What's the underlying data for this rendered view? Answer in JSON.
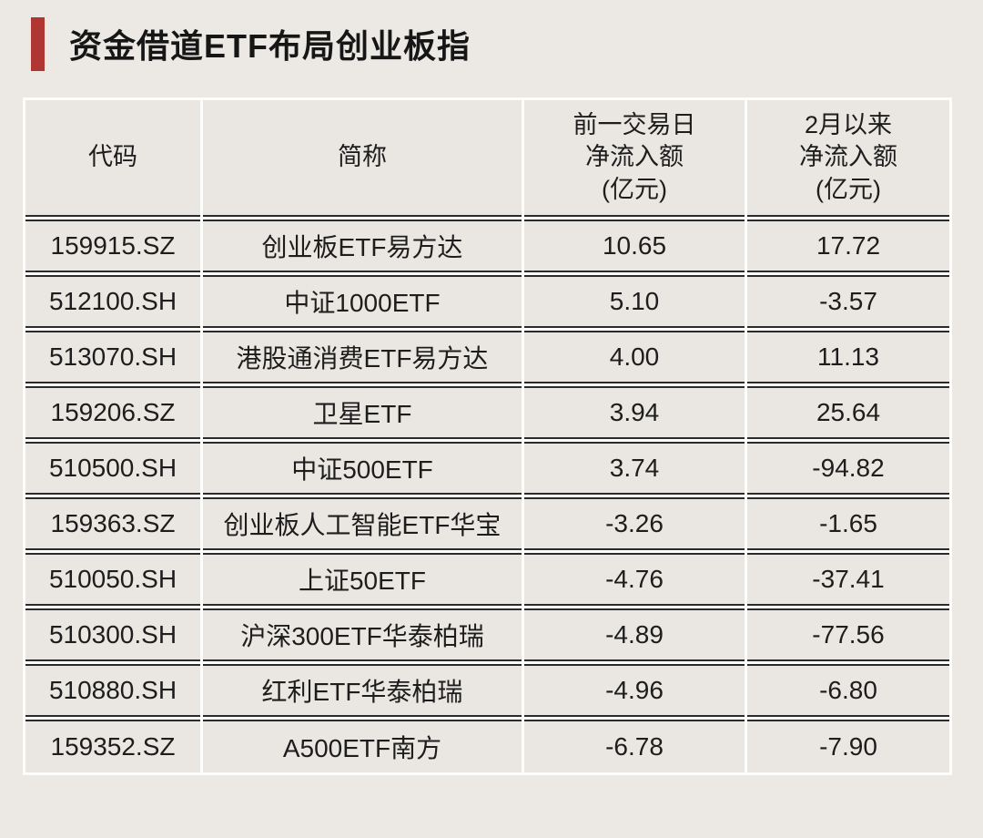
{
  "page": {
    "background": "#ECE9E5",
    "accent_red": "#AF3631"
  },
  "title": {
    "text": "资金借道ETF布局创业板指"
  },
  "table": {
    "headers": {
      "code": "代码",
      "name": "简称",
      "prev_day": "前一交易日\n净流入额\n(亿元)",
      "since_feb": "2月以来\n净流入额\n(亿元)"
    },
    "rows": [
      {
        "code": "159915.SZ",
        "name": "创业板ETF易方达",
        "prev_day": "10.65",
        "since_feb": "17.72"
      },
      {
        "code": "512100.SH",
        "name": "中证1000ETF",
        "prev_day": "5.10",
        "since_feb": "-3.57"
      },
      {
        "code": "513070.SH",
        "name": "港股通消费ETF易方达",
        "prev_day": "4.00",
        "since_feb": "11.13"
      },
      {
        "code": "159206.SZ",
        "name": "卫星ETF",
        "prev_day": "3.94",
        "since_feb": "25.64"
      },
      {
        "code": "510500.SH",
        "name": "中证500ETF",
        "prev_day": "3.74",
        "since_feb": "-94.82"
      },
      {
        "code": "159363.SZ",
        "name": "创业板人工智能ETF华宝",
        "prev_day": "-3.26",
        "since_feb": "-1.65"
      },
      {
        "code": "510050.SH",
        "name": "上证50ETF",
        "prev_day": "-4.76",
        "since_feb": "-37.41"
      },
      {
        "code": "510300.SH",
        "name": "沪深300ETF华泰柏瑞",
        "prev_day": "-4.89",
        "since_feb": "-77.56"
      },
      {
        "code": "510880.SH",
        "name": "红利ETF华泰柏瑞",
        "prev_day": "-4.96",
        "since_feb": "-6.80"
      },
      {
        "code": "159352.SZ",
        "name": "A500ETF南方",
        "prev_day": "-6.78",
        "since_feb": "-7.90"
      }
    ]
  },
  "chart_data": {
    "type": "table",
    "title": "资金借道ETF布局创业板指",
    "columns": [
      "代码",
      "简称",
      "前一交易日净流入额(亿元)",
      "2月以来净流入额(亿元)"
    ],
    "rows": [
      [
        "159915.SZ",
        "创业板ETF易方达",
        10.65,
        17.72
      ],
      [
        "512100.SH",
        "中证1000ETF",
        5.1,
        -3.57
      ],
      [
        "513070.SH",
        "港股通消费ETF易方达",
        4.0,
        11.13
      ],
      [
        "159206.SZ",
        "卫星ETF",
        3.94,
        25.64
      ],
      [
        "510500.SH",
        "中证500ETF",
        3.74,
        -94.82
      ],
      [
        "159363.SZ",
        "创业板人工智能ETF华宝",
        -3.26,
        -1.65
      ],
      [
        "510050.SH",
        "上证50ETF",
        -4.76,
        -37.41
      ],
      [
        "510300.SH",
        "沪深300ETF华泰柏瑞",
        -4.89,
        -77.56
      ],
      [
        "510880.SH",
        "红利ETF华泰柏瑞",
        -4.96,
        -6.8
      ],
      [
        "159352.SZ",
        "A500ETF南方",
        -6.78,
        -7.9
      ]
    ]
  }
}
